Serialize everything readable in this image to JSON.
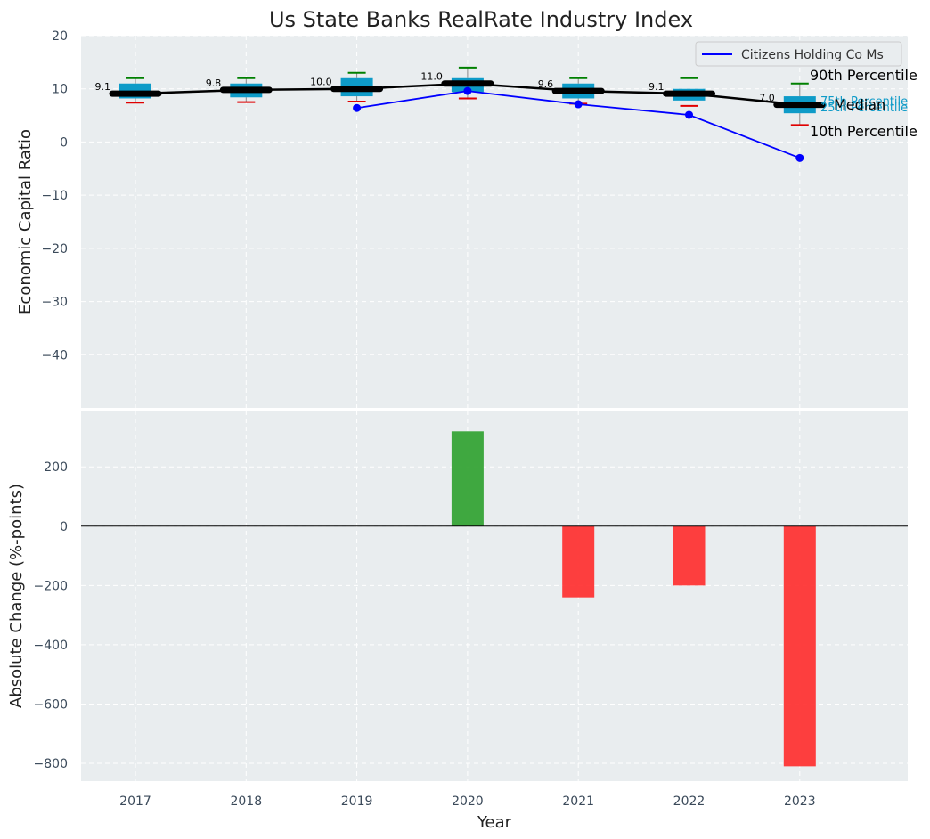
{
  "chart_data": [
    {
      "type": "box",
      "title": "Us State Banks RealRate Industry Index",
      "ylabel": "Economic Capital Ratio",
      "ylim": [
        -50,
        20
      ],
      "yticks": [
        20,
        10,
        0,
        -10,
        -20,
        -30,
        -40
      ],
      "ytick_labels": [
        "20",
        "10",
        "0",
        "−10",
        "−20",
        "−30",
        "−40"
      ],
      "grid": true,
      "legend_position": "top-right",
      "categories": [
        "2017",
        "2018",
        "2019",
        "2020",
        "2021",
        "2022",
        "2023"
      ],
      "boxes": [
        {
          "year": "2017",
          "p10": 7.4,
          "p25": 8.2,
          "median": 9.1,
          "p75": 11.0,
          "p90": 12.0
        },
        {
          "year": "2018",
          "p10": 7.5,
          "p25": 8.4,
          "median": 9.8,
          "p75": 11.0,
          "p90": 12.0
        },
        {
          "year": "2019",
          "p10": 7.6,
          "p25": 8.6,
          "median": 10.0,
          "p75": 12.0,
          "p90": 13.0
        },
        {
          "year": "2020",
          "p10": 8.2,
          "p25": 9.4,
          "median": 11.0,
          "p75": 12.0,
          "p90": 14.0
        },
        {
          "year": "2021",
          "p10": 7.2,
          "p25": 8.2,
          "median": 9.6,
          "p75": 11.0,
          "p90": 12.0
        },
        {
          "year": "2022",
          "p10": 6.8,
          "p25": 7.8,
          "median": 9.1,
          "p75": 10.0,
          "p90": 12.0
        },
        {
          "year": "2023",
          "p10": 3.2,
          "p25": 5.4,
          "median": 7.0,
          "p75": 8.6,
          "p90": 11.0
        }
      ],
      "median_labels": [
        "9.1",
        "9.8",
        "10.0",
        "11.0",
        "9.6",
        "9.1",
        "7.0"
      ],
      "series": [
        {
          "name": "Citizens Holding Co Ms",
          "color": "#0000ff",
          "x": [
            "2019",
            "2020",
            "2021",
            "2022",
            "2023"
          ],
          "values": [
            6.4,
            9.6,
            7.1,
            5.1,
            -3.0
          ]
        }
      ],
      "annotations": {
        "p90": "90th Percentile",
        "median": "Median",
        "p10": "10th Percentile",
        "p75": "75th Percentile",
        "p25": "25th Percentile"
      }
    },
    {
      "type": "bar",
      "xlabel": "Year",
      "ylabel": "Absolute Change (%-points)",
      "ylim": [
        -860,
        390
      ],
      "yticks": [
        200,
        0,
        -200,
        -400,
        -600,
        -800
      ],
      "ytick_labels": [
        "200",
        "0",
        "−200",
        "−400",
        "−600",
        "−800"
      ],
      "grid": true,
      "categories": [
        "2017",
        "2018",
        "2019",
        "2020",
        "2021",
        "2022",
        "2023"
      ],
      "values": [
        null,
        null,
        null,
        320,
        -240,
        -200,
        -810
      ],
      "positive_color": "#2ca02c",
      "negative_color": "#ff2a2a"
    }
  ],
  "colors": {
    "background": "#e9edef",
    "box_fill": "#0e9bc8",
    "whisker_top": "#008000",
    "whisker_bottom": "#e00000",
    "median_line": "#000000",
    "tick_text": "#3b4a5a"
  }
}
